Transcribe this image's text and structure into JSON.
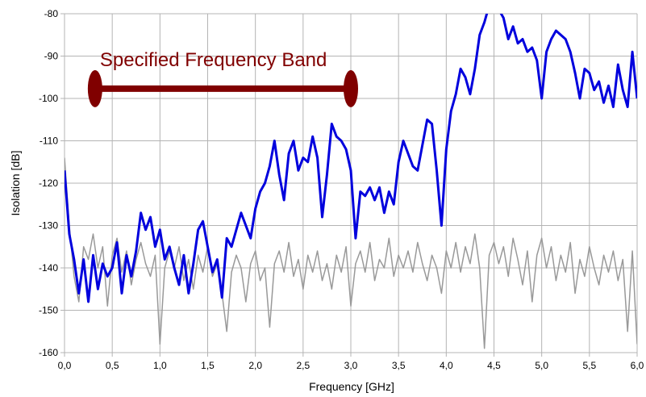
{
  "chart_data": {
    "type": "line",
    "xlabel": "Frequency [GHz]",
    "ylabel": "Isolation [dB]",
    "xlim": [
      0,
      6
    ],
    "ylim": [
      -160,
      -80
    ],
    "xticks": [
      {
        "value": 0,
        "label": "0,0"
      },
      {
        "value": 0.5,
        "label": "0,5"
      },
      {
        "value": 1,
        "label": "1,0"
      },
      {
        "value": 1.5,
        "label": "1,5"
      },
      {
        "value": 2,
        "label": "2,0"
      },
      {
        "value": 2.5,
        "label": "2,5"
      },
      {
        "value": 3,
        "label": "3,0"
      },
      {
        "value": 3.5,
        "label": "3,5"
      },
      {
        "value": 4,
        "label": "4,0"
      },
      {
        "value": 4.5,
        "label": "4,5"
      },
      {
        "value": 5,
        "label": "5,0"
      },
      {
        "value": 5.5,
        "label": "5,5"
      },
      {
        "value": 6,
        "label": "6,0"
      }
    ],
    "yticks": [
      -160,
      -150,
      -140,
      -130,
      -120,
      -110,
      -100,
      -90,
      -80
    ],
    "grid": true,
    "x": [
      0,
      0.05,
      0.1,
      0.15,
      0.2,
      0.25,
      0.3,
      0.35,
      0.4,
      0.45,
      0.5,
      0.55,
      0.6,
      0.65,
      0.7,
      0.75,
      0.8,
      0.85,
      0.9,
      0.95,
      1,
      1.05,
      1.1,
      1.15,
      1.2,
      1.25,
      1.3,
      1.35,
      1.4,
      1.45,
      1.5,
      1.55,
      1.6,
      1.65,
      1.7,
      1.75,
      1.8,
      1.85,
      1.9,
      1.95,
      2,
      2.05,
      2.1,
      2.15,
      2.2,
      2.25,
      2.3,
      2.35,
      2.4,
      2.45,
      2.5,
      2.55,
      2.6,
      2.65,
      2.7,
      2.75,
      2.8,
      2.85,
      2.9,
      2.95,
      3,
      3.05,
      3.1,
      3.15,
      3.2,
      3.25,
      3.3,
      3.35,
      3.4,
      3.45,
      3.5,
      3.55,
      3.6,
      3.65,
      3.7,
      3.75,
      3.8,
      3.85,
      3.9,
      3.95,
      4,
      4.05,
      4.1,
      4.15,
      4.2,
      4.25,
      4.3,
      4.35,
      4.4,
      4.45,
      4.5,
      4.55,
      4.6,
      4.65,
      4.7,
      4.75,
      4.8,
      4.85,
      4.9,
      4.95,
      5,
      5.05,
      5.1,
      5.15,
      5.2,
      5.25,
      5.3,
      5.35,
      5.4,
      5.45,
      5.5,
      5.55,
      5.6,
      5.65,
      5.7,
      5.75,
      5.8,
      5.85,
      5.9,
      5.95,
      6
    ],
    "series": [
      {
        "color": "#999999",
        "width": 1.5,
        "values": [
          -114,
          -130,
          -142,
          -148,
          -135,
          -138,
          -132,
          -140,
          -135,
          -149,
          -137,
          -133,
          -141,
          -136,
          -144,
          -138,
          -134,
          -139,
          -142,
          -137,
          -158,
          -140,
          -136,
          -140,
          -135,
          -143,
          -138,
          -145,
          -137,
          -141,
          -135,
          -142,
          -139,
          -146,
          -155,
          -141,
          -137,
          -140,
          -148,
          -139,
          -136,
          -143,
          -140,
          -154,
          -139,
          -136,
          -141,
          -134,
          -142,
          -138,
          -145,
          -137,
          -141,
          -136,
          -143,
          -139,
          -145,
          -137,
          -141,
          -135,
          -149,
          -139,
          -136,
          -141,
          -134,
          -143,
          -138,
          -140,
          -133,
          -142,
          -137,
          -140,
          -136,
          -141,
          -134,
          -139,
          -143,
          -137,
          -140,
          -146,
          -136,
          -140,
          -134,
          -141,
          -135,
          -139,
          -132,
          -140,
          -159,
          -137,
          -134,
          -139,
          -135,
          -142,
          -133,
          -138,
          -144,
          -136,
          -148,
          -137,
          -133,
          -140,
          -135,
          -143,
          -137,
          -141,
          -134,
          -146,
          -138,
          -142,
          -135,
          -140,
          -144,
          -137,
          -141,
          -136,
          -143,
          -138,
          -155,
          -136,
          -158
        ]
      },
      {
        "color": "#0000dd",
        "width": 3,
        "values": [
          -117,
          -132,
          -138,
          -146,
          -138,
          -148,
          -137,
          -145,
          -139,
          -142,
          -140,
          -134,
          -146,
          -137,
          -142,
          -136,
          -127,
          -131,
          -128,
          -135,
          -131,
          -138,
          -135,
          -140,
          -144,
          -137,
          -146,
          -139,
          -131,
          -129,
          -135,
          -141,
          -138,
          -147,
          -133,
          -135,
          -131,
          -127,
          -130,
          -133,
          -126,
          -122,
          -120,
          -116,
          -110,
          -118,
          -124,
          -113,
          -110,
          -117,
          -114,
          -115,
          -109,
          -114,
          -128,
          -118,
          -106,
          -109,
          -110,
          -112,
          -117,
          -133,
          -122,
          -123,
          -121,
          -124,
          -121,
          -127,
          -122,
          -125,
          -115,
          -110,
          -113,
          -116,
          -117,
          -111,
          -105,
          -106,
          -117,
          -130,
          -112,
          -103,
          -99,
          -93,
          -95,
          -99,
          -93,
          -85,
          -82,
          -78,
          -78,
          -79,
          -81,
          -86,
          -83,
          -87,
          -86,
          -89,
          -88,
          -91,
          -100,
          -89,
          -86,
          -84,
          -85,
          -86,
          -89,
          -94,
          -100,
          -93,
          -94,
          -98,
          -96,
          -101,
          -97,
          -102,
          -92,
          -98,
          -102,
          -89,
          -100
        ]
      }
    ],
    "annotations": [
      {
        "text": "Specified Frequency Band",
        "color": "#800000",
        "x": [
          0.32,
          3.0
        ],
        "y": -97.7
      }
    ]
  }
}
